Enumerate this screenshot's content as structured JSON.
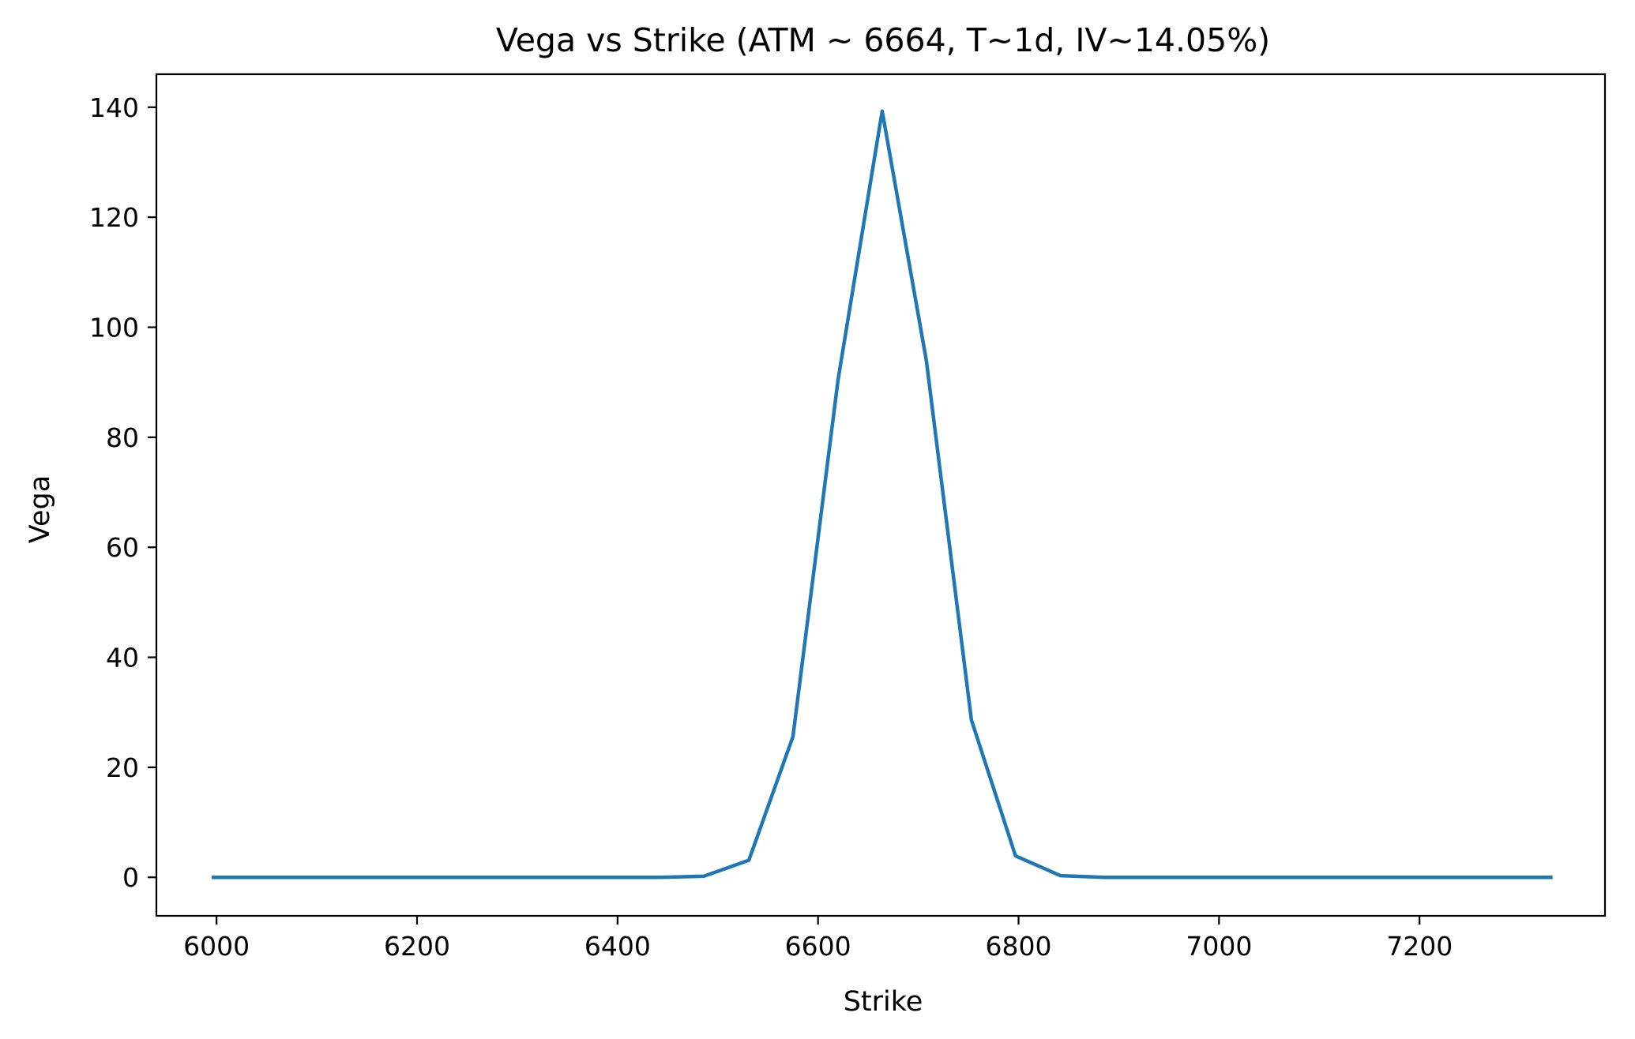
{
  "chart_data": {
    "type": "line",
    "title": "Vega vs Strike (ATM ~ 6664, T~1d, IV~14.05%)",
    "xlabel": "Strike",
    "ylabel": "Vega",
    "xlim": [
      5940,
      7385
    ],
    "ylim": [
      -7,
      146
    ],
    "x_ticks": [
      6000,
      6200,
      6400,
      6600,
      6800,
      7000,
      7200
    ],
    "y_ticks": [
      0,
      20,
      40,
      60,
      80,
      100,
      120,
      140
    ],
    "grid": false,
    "colors": {
      "line": "#1f77b4",
      "axes": "#000000",
      "background": "#ffffff"
    },
    "series": [
      {
        "x": [
          5997,
          6041,
          6086,
          6130,
          6175,
          6219,
          6264,
          6308,
          6353,
          6397,
          6442,
          6486,
          6531,
          6575,
          6620,
          6664,
          6708,
          6753,
          6797,
          6842,
          6886,
          6931,
          6975,
          7020,
          7064,
          7108,
          7153,
          7197,
          7242,
          7286,
          7331
        ],
        "y": [
          0,
          0,
          0,
          0,
          0,
          0,
          0,
          0,
          0,
          0,
          0,
          0.2,
          3.1,
          25.6,
          90.5,
          139.3,
          94,
          28.6,
          3.9,
          0.3,
          0,
          0,
          0,
          0,
          0,
          0,
          0,
          0,
          0,
          0,
          0
        ]
      }
    ]
  }
}
